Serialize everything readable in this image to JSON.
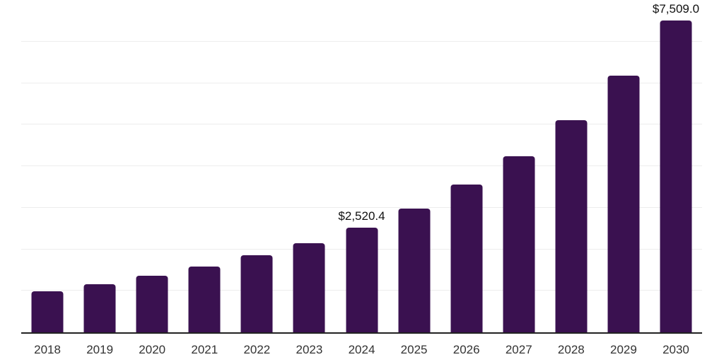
{
  "chart_data": {
    "type": "bar",
    "title": "",
    "xlabel": "",
    "ylabel": "",
    "categories": [
      "2018",
      "2019",
      "2020",
      "2021",
      "2022",
      "2023",
      "2024",
      "2025",
      "2026",
      "2027",
      "2028",
      "2029",
      "2030"
    ],
    "values": [
      985,
      1150,
      1355,
      1575,
      1850,
      2150,
      2520.4,
      2985,
      3560,
      4245,
      5115,
      6180,
      7509
    ],
    "bar_labels": [
      "",
      "",
      "",
      "",
      "",
      "",
      "$2,520.4",
      "",
      "",
      "",
      "",
      "",
      "$7,509.0"
    ],
    "ylim": [
      0,
      8000
    ],
    "gridline_interval": 1000,
    "grid": true,
    "y_axis_tick_labels_visible": false,
    "legend": null,
    "colors": {
      "bar": "#3a1150",
      "axis": "#222222",
      "gridline": "#ededed",
      "tick_label": "#333333",
      "data_label": "#111111",
      "background": "#ffffff"
    }
  }
}
